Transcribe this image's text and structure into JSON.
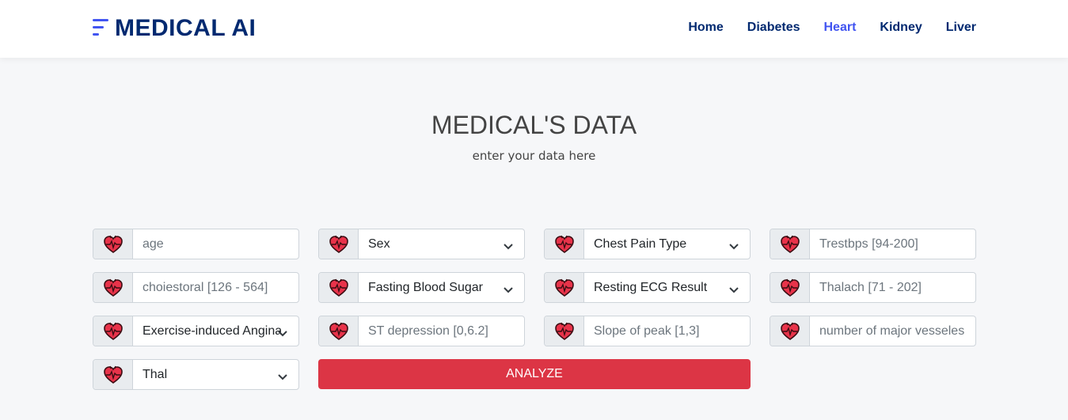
{
  "brand": {
    "name": "MEDICAL AI"
  },
  "nav": {
    "items": [
      {
        "label": "Home"
      },
      {
        "label": "Diabetes"
      },
      {
        "label": "Heart"
      },
      {
        "label": "Kidney"
      },
      {
        "label": "Liver"
      }
    ],
    "active": "Heart"
  },
  "header": {
    "title": "MEDICAL'S DATA",
    "subtitle": "enter your data here"
  },
  "form": {
    "fields": [
      {
        "type": "input",
        "placeholder": "age"
      },
      {
        "type": "select",
        "selected": "Sex"
      },
      {
        "type": "select",
        "selected": "Chest Pain Type"
      },
      {
        "type": "input",
        "placeholder": "Trestbps [94-200]"
      },
      {
        "type": "input",
        "placeholder": "choiestoral [126 - 564]"
      },
      {
        "type": "select",
        "selected": "Fasting Blood Sugar"
      },
      {
        "type": "select",
        "selected": "Resting ECG Result"
      },
      {
        "type": "input",
        "placeholder": "Thalach [71 - 202]"
      },
      {
        "type": "select",
        "selected": "Exercise-induced Angina"
      },
      {
        "type": "input",
        "placeholder": "ST depression [0,6.2]"
      },
      {
        "type": "input",
        "placeholder": "Slope of peak [1,3]"
      },
      {
        "type": "input",
        "placeholder": "number of major vesseles"
      },
      {
        "type": "select",
        "selected": "Thal"
      }
    ],
    "submit_label": "ANALYZE",
    "icon": "heart-icon"
  },
  "colors": {
    "brand": "#012970",
    "accent": "#4154f1",
    "button": "#dc3545"
  }
}
